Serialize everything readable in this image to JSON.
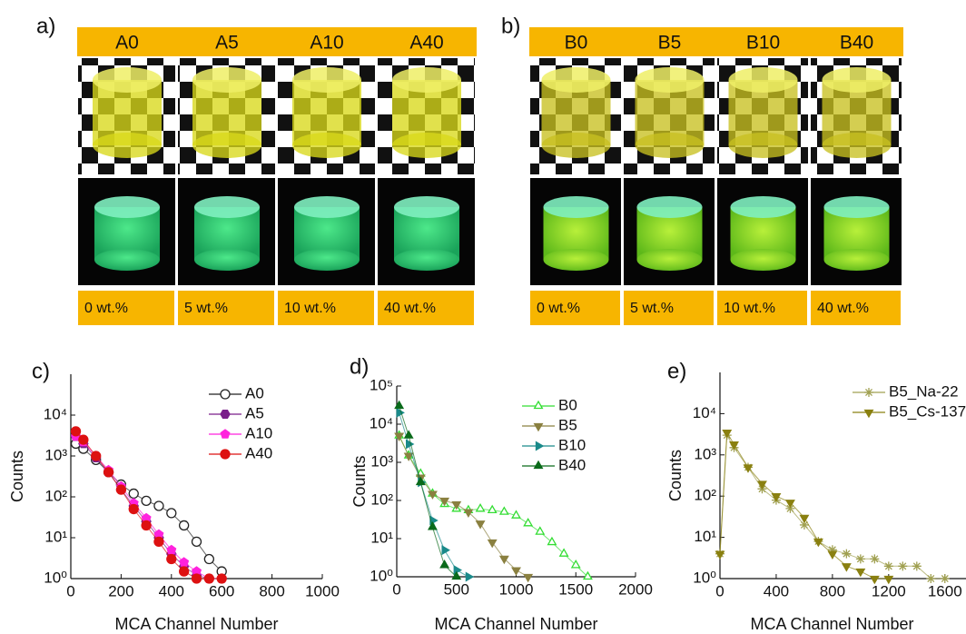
{
  "figure": {
    "panel_a": {
      "label": "a)",
      "samples": [
        {
          "name": "A0",
          "content": "0 wt.%"
        },
        {
          "name": "A5",
          "content": "5 wt.%"
        },
        {
          "name": "A10",
          "content": "10 wt.%"
        },
        {
          "name": "A40",
          "content": "40 wt.%"
        }
      ]
    },
    "panel_b": {
      "label": "b)",
      "samples": [
        {
          "name": "B0",
          "content": "0 wt.%"
        },
        {
          "name": "B5",
          "content": "5 wt.%"
        },
        {
          "name": "B10",
          "content": "10 wt.%"
        },
        {
          "name": "B40",
          "content": "40 wt.%"
        }
      ]
    }
  },
  "chart_data": [
    {
      "type": "scatter",
      "panel_label": "c)",
      "x_label": "MCA Channel Number",
      "y_label": "Counts",
      "log_y": true,
      "legend": "upper right",
      "xlim": [
        0,
        1000
      ],
      "ylim": [
        1,
        100000
      ],
      "xticks": [
        0,
        200,
        400,
        600,
        800,
        1000
      ],
      "yticks": [
        {
          "value": 1,
          "label": "10⁰"
        },
        {
          "value": 10,
          "label": "10¹"
        },
        {
          "value": 100,
          "label": "10²"
        },
        {
          "value": 1000,
          "label": "10³"
        },
        {
          "value": 10000,
          "label": "10⁴"
        }
      ],
      "x": [
        20,
        50,
        100,
        150,
        200,
        250,
        300,
        350,
        400,
        450,
        500,
        550,
        600
      ],
      "series": [
        {
          "name": "A0",
          "color": "#222222",
          "marker": "circle",
          "open": true,
          "values": [
            2000,
            1500,
            800,
            400,
            200,
            120,
            80,
            60,
            40,
            20,
            8,
            3,
            1.5
          ]
        },
        {
          "name": "A5",
          "color": "#7a1f8a",
          "marker": "hexagon",
          "open": false,
          "values": [
            3000,
            2000,
            900,
            400,
            150,
            60,
            25,
            10,
            4,
            2,
            1.2,
            1,
            1
          ]
        },
        {
          "name": "A10",
          "color": "#ff22dd",
          "marker": "pentagon",
          "open": false,
          "values": [
            3000,
            2200,
            1000,
            450,
            180,
            70,
            30,
            12,
            5,
            2.5,
            1.5,
            1,
            1
          ]
        },
        {
          "name": "A40",
          "color": "#dd1111",
          "marker": "circle",
          "open": false,
          "values": [
            4000,
            2500,
            1000,
            400,
            150,
            50,
            20,
            8,
            3,
            1.5,
            1,
            1,
            1
          ]
        }
      ]
    },
    {
      "type": "scatter",
      "panel_label": "d)",
      "x_label": "MCA Channel Number",
      "y_label": "Counts",
      "log_y": true,
      "legend": "upper right",
      "xlim": [
        0,
        2000
      ],
      "ylim": [
        1,
        100000
      ],
      "xticks": [
        0,
        500,
        1000,
        1500,
        2000
      ],
      "yticks": [
        {
          "value": 1,
          "label": "10⁰"
        },
        {
          "value": 10,
          "label": "10¹"
        },
        {
          "value": 100,
          "label": "10²"
        },
        {
          "value": 1000,
          "label": "10³"
        },
        {
          "value": 10000,
          "label": "10⁴"
        },
        {
          "value": 100000,
          "label": "10⁵"
        }
      ],
      "x": [
        20,
        100,
        200,
        300,
        400,
        500,
        600,
        700,
        800,
        900,
        1000,
        1100,
        1200,
        1300,
        1400,
        1500,
        1600
      ],
      "series": [
        {
          "name": "B0",
          "color": "#33dd33",
          "marker": "triangle-up",
          "open": true,
          "values": [
            5000,
            1500,
            500,
            150,
            80,
            60,
            55,
            60,
            55,
            50,
            40,
            25,
            15,
            8,
            4,
            2,
            1
          ]
        },
        {
          "name": "B5",
          "color": "#8a8040",
          "marker": "triangle-down",
          "open": false,
          "values": [
            5000,
            1500,
            400,
            150,
            100,
            80,
            50,
            25,
            8,
            3,
            1.5,
            1,
            null,
            null,
            null,
            null,
            null
          ]
        },
        {
          "name": "B10",
          "color": "#1a8a8a",
          "marker": "triangle-right",
          "open": false,
          "values": [
            20000,
            3000,
            300,
            30,
            5,
            1.5,
            1,
            null,
            null,
            null,
            null,
            null,
            null,
            null,
            null,
            null,
            null
          ]
        },
        {
          "name": "B40",
          "color": "#0a6a1a",
          "marker": "triangle-up",
          "open": false,
          "values": [
            30000,
            5000,
            300,
            20,
            2,
            1,
            null,
            null,
            null,
            null,
            null,
            null,
            null,
            null,
            null,
            null,
            null
          ]
        }
      ]
    },
    {
      "type": "scatter",
      "panel_label": "e)",
      "x_label": "MCA Channel Number",
      "y_label": "Counts",
      "log_y": true,
      "legend": "upper right",
      "xlim": [
        0,
        1750
      ],
      "ylim": [
        1,
        100000
      ],
      "xticks": [
        0,
        400,
        800,
        1200,
        1600
      ],
      "yticks": [
        {
          "value": 1,
          "label": "10⁰"
        },
        {
          "value": 10,
          "label": "10¹"
        },
        {
          "value": 100,
          "label": "10²"
        },
        {
          "value": 1000,
          "label": "10³"
        },
        {
          "value": 10000,
          "label": "10⁴"
        }
      ],
      "x": [
        0,
        50,
        100,
        200,
        300,
        400,
        500,
        600,
        700,
        800,
        900,
        1000,
        1100,
        1200,
        1300,
        1400,
        1500,
        1600
      ],
      "series": [
        {
          "name": "B5_Na-22",
          "color": "#a0a050",
          "marker": "star",
          "open": true,
          "values": [
            4,
            3000,
            1500,
            500,
            150,
            80,
            50,
            20,
            8,
            5,
            4,
            3,
            3,
            2,
            2,
            2,
            1,
            1
          ]
        },
        {
          "name": "B5_Cs-137",
          "color": "#8a8010",
          "marker": "triangle-down",
          "open": false,
          "values": [
            4,
            3500,
            1800,
            500,
            200,
            100,
            70,
            30,
            8,
            4,
            2,
            1.5,
            1,
            1,
            null,
            null,
            null,
            null
          ]
        }
      ]
    }
  ]
}
